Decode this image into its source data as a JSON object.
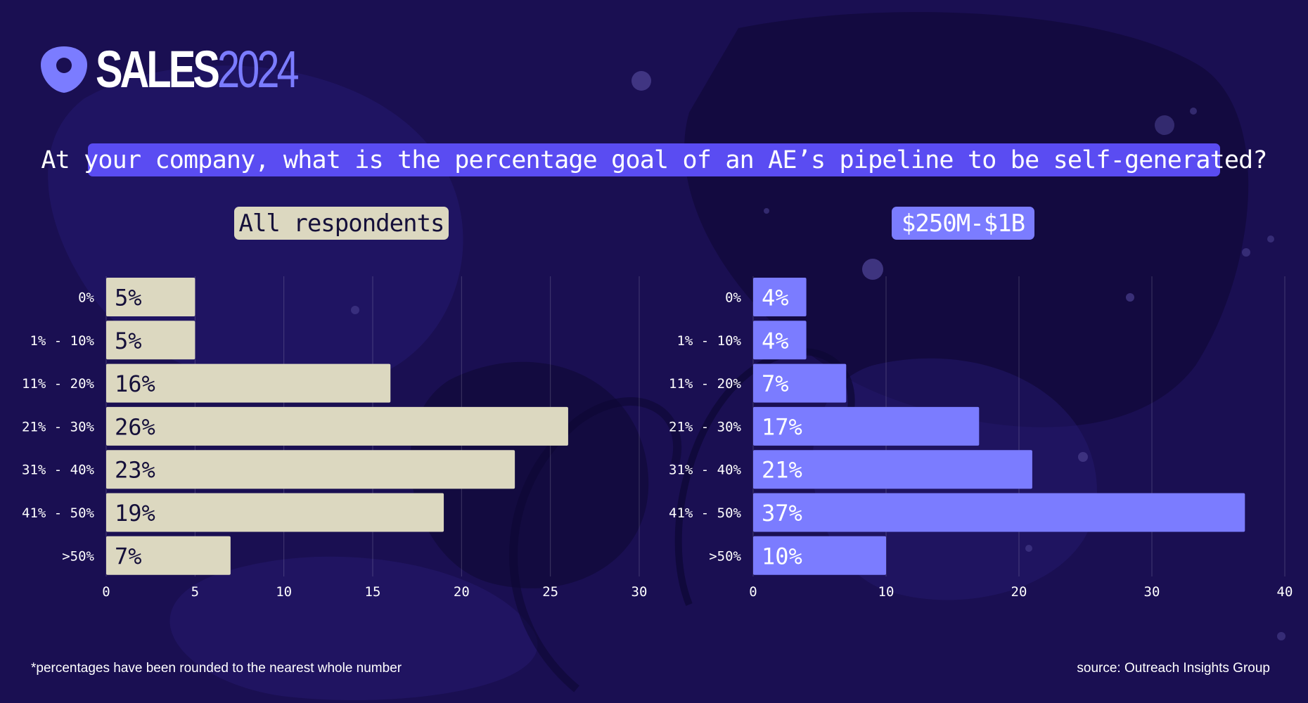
{
  "brand": {
    "name": "SALES",
    "year": "2024"
  },
  "question": "At your company, what is the percentage goal of an AE’s pipeline to be self-generated?",
  "colors": {
    "background": "#1a0f52",
    "question_bg": "#5a4cf2",
    "left_bars": "#dcd8c0",
    "right_bars": "#7b7cff",
    "text": "#ffffff"
  },
  "chart_data": [
    {
      "type": "bar",
      "orientation": "horizontal",
      "title": "All respondents",
      "categories": [
        "0%",
        "1% - 10%",
        "11% - 20%",
        "21% - 30%",
        "31% - 40%",
        "41% - 50%",
        ">50%"
      ],
      "values": [
        5,
        5,
        16,
        26,
        23,
        19,
        7
      ],
      "value_labels": [
        "5%",
        "5%",
        "16%",
        "26%",
        "23%",
        "19%",
        "7%"
      ],
      "xlim": [
        0,
        30
      ],
      "xticks": [
        "0",
        "5",
        "10",
        "15",
        "20",
        "25",
        "30"
      ],
      "grid": true,
      "color": "#dcd8c0",
      "label_color": "#15103a"
    },
    {
      "type": "bar",
      "orientation": "horizontal",
      "title": "$250M-$1B",
      "categories": [
        "0%",
        "1% - 10%",
        "11% - 20%",
        "21% - 30%",
        "31% - 40%",
        "41% - 50%",
        ">50%"
      ],
      "values": [
        4,
        4,
        7,
        17,
        21,
        37,
        10
      ],
      "value_labels": [
        "4%",
        "4%",
        "7%",
        "17%",
        "21%",
        "37%",
        "10%"
      ],
      "xlim": [
        0,
        40
      ],
      "xticks": [
        "0",
        "10",
        "20",
        "30",
        "40"
      ],
      "grid": true,
      "color": "#7b7cff",
      "label_color": "#ffffff"
    }
  ],
  "footnote": "*percentages have been rounded to the nearest whole number",
  "source": "source: Outreach Insights Group"
}
